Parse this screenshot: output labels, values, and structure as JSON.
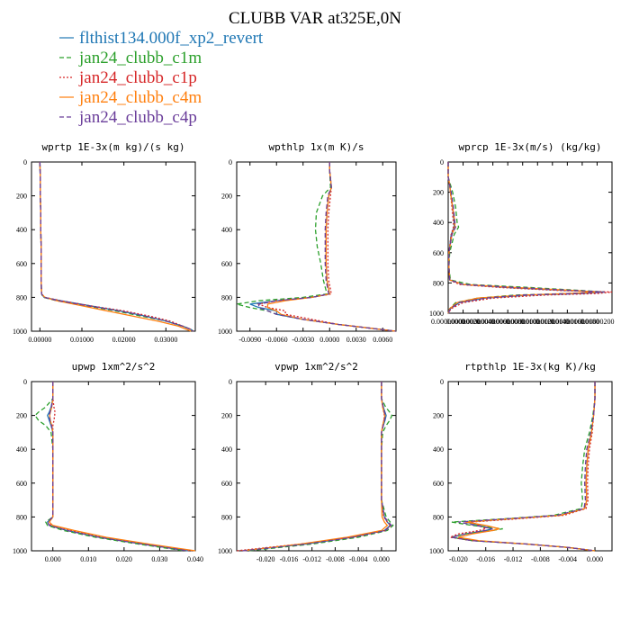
{
  "figure": {
    "title": "CLUBB VAR at325E,0N",
    "legend": [
      {
        "label": "flthist134.000f_xp2_revert",
        "color": "#1f77b4",
        "dash": "solid"
      },
      {
        "label": "jan24_clubb_c1m",
        "color": "#2ca02c",
        "dash": "dash"
      },
      {
        "label": "jan24_clubb_c1p",
        "color": "#d62728",
        "dash": "dot"
      },
      {
        "label": "jan24_clubb_c4m",
        "color": "#ff7f0e",
        "dash": "solid"
      },
      {
        "label": "jan24_clubb_c4p",
        "color": "#6a3d9a",
        "dash": "dash"
      }
    ]
  },
  "chart_data": [
    {
      "type": "line",
      "title": "wprtp  1E-3x(m kg)/(s kg)",
      "xlim": [
        -0.002,
        0.037
      ],
      "ylim": [
        0,
        1000
      ],
      "y_reversed": true,
      "xticks": [
        "0.00000",
        "0.01000",
        "0.02000",
        "0.03000"
      ],
      "yticks": [
        "0",
        "200",
        "400",
        "600",
        "800",
        "1000"
      ],
      "y": [
        0,
        100,
        200,
        300,
        400,
        500,
        600,
        700,
        780,
        800,
        820,
        850,
        880,
        910,
        940,
        970,
        990,
        1000
      ],
      "series": [
        {
          "values": [
            0,
            0.0001,
            0.0001,
            0.0002,
            0.0002,
            0.0003,
            0.0003,
            0.0003,
            0.0004,
            0.001,
            0.005,
            0.012,
            0.019,
            0.025,
            0.03,
            0.034,
            0.036,
            0.0365
          ]
        },
        {
          "values": [
            0,
            0.0001,
            0.0001,
            0.0002,
            0.0002,
            0.0003,
            0.0003,
            0.0003,
            0.0004,
            0.0008,
            0.004,
            0.011,
            0.018,
            0.024,
            0.03,
            0.034,
            0.036,
            0.0365
          ]
        },
        {
          "values": [
            0,
            0.0001,
            0.0001,
            0.0002,
            0.0002,
            0.0003,
            0.0003,
            0.0003,
            0.0004,
            0.0012,
            0.005,
            0.012,
            0.02,
            0.026,
            0.031,
            0.034,
            0.036,
            0.0365
          ]
        },
        {
          "values": [
            0,
            0.0001,
            0.0001,
            0.0002,
            0.0002,
            0.0003,
            0.0003,
            0.0003,
            0.0004,
            0.0012,
            0.004,
            0.01,
            0.016,
            0.022,
            0.028,
            0.033,
            0.035,
            0.036
          ]
        },
        {
          "values": [
            0,
            0.0001,
            0.0001,
            0.0002,
            0.0002,
            0.0003,
            0.0003,
            0.0003,
            0.0004,
            0.001,
            0.0045,
            0.0115,
            0.019,
            0.025,
            0.03,
            0.034,
            0.036,
            0.0365
          ]
        }
      ]
    },
    {
      "type": "line",
      "title": "wpthlp  1x(m K)/s",
      "xlim": [
        -0.0105,
        0.0075
      ],
      "ylim": [
        0,
        1000
      ],
      "y_reversed": true,
      "xticks": [
        "-0.0090",
        "-0.0060",
        "-0.0030",
        "0.0000",
        "0.0030",
        "0.0060"
      ],
      "yticks": [
        "0",
        "200",
        "400",
        "600",
        "800",
        "1000"
      ],
      "y": [
        0,
        50,
        150,
        200,
        300,
        400,
        500,
        600,
        700,
        780,
        800,
        820,
        840,
        860,
        880,
        900,
        930,
        960,
        1000
      ],
      "series": [
        {
          "values": [
            0,
            0,
            0.0002,
            -0.0001,
            -0.0003,
            -0.0004,
            -0.0004,
            -0.0004,
            -0.0003,
            0.0,
            -0.002,
            -0.006,
            -0.009,
            -0.008,
            -0.006,
            -0.006,
            -0.003,
            0.001,
            0.0075
          ]
        },
        {
          "values": [
            0,
            0,
            0.0001,
            -0.0008,
            -0.0015,
            -0.0016,
            -0.0014,
            -0.001,
            -0.0007,
            -0.0003,
            -0.003,
            -0.008,
            -0.0105,
            -0.009,
            -0.007,
            -0.006,
            -0.003,
            0.001,
            0.0075
          ]
        },
        {
          "values": [
            0,
            0,
            0.0002,
            0.0001,
            -0.0001,
            -0.0002,
            -0.0002,
            -0.0002,
            -0.0001,
            0.0002,
            -0.002,
            -0.006,
            -0.008,
            -0.007,
            -0.005,
            -0.005,
            -0.002,
            0.001,
            0.0075
          ]
        },
        {
          "values": [
            0,
            0,
            0.0002,
            -0.0001,
            -0.0003,
            -0.0004,
            -0.0004,
            -0.0004,
            -0.0003,
            0.0,
            -0.002,
            -0.005,
            -0.007,
            -0.007,
            -0.006,
            -0.0055,
            -0.003,
            0.001,
            0.0075
          ]
        },
        {
          "values": [
            0,
            0,
            0.0002,
            -0.0002,
            -0.0004,
            -0.0005,
            -0.0005,
            -0.0005,
            -0.0004,
            -0.0001,
            -0.002,
            -0.006,
            -0.008,
            -0.008,
            -0.007,
            -0.006,
            -0.003,
            0.001,
            0.0075
          ]
        }
      ]
    },
    {
      "type": "line",
      "title": "wprcp  1E-3x(m/s) (kg/kg)",
      "xlim": [
        0,
        2.2e-06
      ],
      "ylim": [
        0,
        1000
      ],
      "y_reversed": true,
      "xticks": [
        "0.00000000",
        "0.00000020",
        "0.00000040",
        "0.00000060",
        "0.00000080",
        "0.00000100",
        "0.00000120",
        "0.00000140",
        "0.00000160",
        "0.00000180",
        "0.00000200"
      ],
      "yticks": [
        "0",
        "200",
        "400",
        "600",
        "800",
        "1000"
      ],
      "y": [
        0,
        100,
        150,
        200,
        300,
        400,
        430,
        480,
        600,
        700,
        780,
        810,
        830,
        850,
        860,
        870,
        880,
        900,
        930,
        970,
        1000
      ],
      "series": [
        {
          "values": [
            0,
            0,
            2e-08,
            3e-08,
            6e-08,
            8e-08,
            8e-08,
            4e-08,
            1e-08,
            1e-08,
            2e-08,
            2e-07,
            8e-07,
            1.6e-06,
            2.1e-06,
            1.8e-06,
            1.1e-06,
            5e-07,
            1.5e-07,
            3e-08,
            0
          ]
        },
        {
          "values": [
            0,
            0,
            3e-08,
            6e-08,
            1e-07,
            1.2e-07,
            1.4e-07,
            8e-08,
            2e-08,
            1e-08,
            3e-08,
            3e-07,
            1.1e-06,
            1.8e-06,
            2.1e-06,
            1.6e-06,
            9e-07,
            4e-07,
            1e-07,
            2e-08,
            0
          ]
        },
        {
          "values": [
            0,
            0,
            2e-08,
            3e-08,
            5e-08,
            7e-08,
            7e-08,
            4e-08,
            1e-08,
            1e-08,
            2e-08,
            1.5e-07,
            7e-07,
            1.5e-06,
            2.2e-06,
            2e-06,
            1.3e-06,
            6e-07,
            2e-07,
            4e-08,
            0
          ]
        },
        {
          "values": [
            0,
            0,
            2e-08,
            3e-08,
            6e-08,
            9e-08,
            9e-08,
            5e-08,
            1e-08,
            1e-08,
            2e-08,
            2e-07,
            9e-07,
            1.7e-06,
            2e-06,
            1.6e-06,
            1e-06,
            4e-07,
            1.2e-07,
            2e-08,
            0
          ]
        },
        {
          "values": [
            0,
            0,
            2e-08,
            4e-08,
            7e-08,
            9e-08,
            1e-07,
            5e-08,
            1e-08,
            1e-08,
            2e-08,
            2e-07,
            9e-07,
            1.7e-06,
            2.1e-06,
            1.7e-06,
            1e-06,
            5e-07,
            1.4e-07,
            3e-08,
            0
          ]
        }
      ]
    },
    {
      "type": "line",
      "title": "upwp   1xm^2/s^2",
      "xlim": [
        -0.006,
        0.04
      ],
      "ylim": [
        0,
        1000
      ],
      "y_reversed": true,
      "xticks": [
        "0.000",
        "0.010",
        "0.020",
        "0.030",
        "0.040"
      ],
      "yticks": [
        "0",
        "200",
        "400",
        "600",
        "800",
        "1000"
      ],
      "y": [
        0,
        100,
        150,
        180,
        200,
        230,
        260,
        300,
        400,
        500,
        600,
        700,
        800,
        830,
        850,
        880,
        920,
        960,
        1000
      ],
      "series": [
        {
          "values": [
            0,
            0,
            -0.0005,
            -0.001,
            -0.0015,
            -0.001,
            -0.0005,
            0,
            0,
            0,
            0,
            0,
            0,
            -0.0015,
            -0.001,
            0.004,
            0.013,
            0.025,
            0.038
          ]
        },
        {
          "values": [
            0,
            0,
            -0.002,
            -0.004,
            -0.005,
            -0.004,
            -0.002,
            -0.0005,
            0,
            0,
            0,
            0,
            0,
            -0.002,
            -0.0015,
            0.003,
            0.012,
            0.024,
            0.037
          ]
        },
        {
          "values": [
            0,
            0,
            0.0003,
            0.0006,
            0.0005,
            0.0003,
            0,
            0,
            0,
            0,
            0,
            0,
            0,
            -0.001,
            -0.0005,
            0.005,
            0.014,
            0.026,
            0.039
          ]
        },
        {
          "values": [
            0,
            0,
            -0.0003,
            -0.0007,
            -0.0009,
            -0.0007,
            -0.0003,
            0,
            0,
            0,
            0,
            0,
            0,
            -0.001,
            0,
            0.006,
            0.015,
            0.027,
            0.04
          ]
        },
        {
          "values": [
            0,
            0,
            -0.0004,
            -0.0008,
            -0.001,
            -0.0008,
            -0.0004,
            0,
            0,
            0,
            0,
            0,
            0,
            -0.0015,
            -0.001,
            0.004,
            0.013,
            0.025,
            0.038
          ]
        }
      ]
    },
    {
      "type": "line",
      "title": "vpwp   1xm^2/s^2",
      "xlim": [
        -0.025,
        0.0025
      ],
      "ylim": [
        0,
        1000
      ],
      "y_reversed": true,
      "xticks": [
        "-0.020",
        "-0.016",
        "-0.012",
        "-0.008",
        "-0.004",
        "0.000"
      ],
      "yticks": [
        "0",
        "200",
        "400",
        "600",
        "800",
        "1000"
      ],
      "y": [
        0,
        100,
        150,
        180,
        200,
        230,
        260,
        300,
        400,
        500,
        600,
        700,
        800,
        830,
        850,
        880,
        920,
        960,
        1000
      ],
      "series": [
        {
          "values": [
            0,
            0,
            0.0003,
            0.0006,
            0.0008,
            0.0006,
            0.0003,
            0,
            0,
            0,
            0,
            0,
            0.0005,
            0.001,
            0.0015,
            0.0005,
            -0.005,
            -0.013,
            -0.024
          ]
        },
        {
          "values": [
            0,
            0,
            0.0007,
            0.0014,
            0.0018,
            0.0014,
            0.0008,
            0.0002,
            0,
            0,
            0,
            0,
            0.0008,
            0.0015,
            0.002,
            0.001,
            -0.004,
            -0.012,
            -0.023
          ]
        },
        {
          "values": [
            0,
            0,
            0.0002,
            0.0004,
            0.0005,
            0.0004,
            0.0002,
            0,
            0,
            0,
            0,
            0,
            0.0004,
            0.001,
            0.0016,
            0.0006,
            -0.005,
            -0.014,
            -0.025
          ]
        },
        {
          "values": [
            0,
            0,
            0.0002,
            0.0004,
            0.0006,
            0.0004,
            0.0002,
            0,
            0,
            0,
            0,
            0,
            0.0001,
            0.0005,
            0.001,
            0,
            -0.006,
            -0.014,
            -0.024
          ]
        },
        {
          "values": [
            0,
            0,
            0.0003,
            0.0005,
            0.0007,
            0.0005,
            0.0003,
            0,
            0,
            0,
            0,
            0,
            0.0005,
            0.0012,
            0.0017,
            0.0007,
            -0.005,
            -0.013,
            -0.024
          ]
        }
      ]
    },
    {
      "type": "line",
      "title": "rtpthlp  1E-3x(kg K)/kg",
      "xlim": [
        -0.0215,
        0.0025
      ],
      "ylim": [
        0,
        1000
      ],
      "y_reversed": true,
      "xticks": [
        "-0.020",
        "-0.016",
        "-0.012",
        "-0.008",
        "-0.004",
        "0.000"
      ],
      "yticks": [
        "0",
        "200",
        "400",
        "600",
        "800",
        "1000"
      ],
      "y": [
        0,
        100,
        200,
        300,
        400,
        500,
        600,
        700,
        750,
        790,
        810,
        830,
        850,
        870,
        880,
        900,
        920,
        940,
        960,
        980,
        1000
      ],
      "series": [
        {
          "values": [
            0,
            0,
            -0.0002,
            -0.0005,
            -0.001,
            -0.0012,
            -0.0013,
            -0.0012,
            -0.0015,
            -0.005,
            -0.012,
            -0.019,
            -0.017,
            -0.015,
            -0.016,
            -0.019,
            -0.021,
            -0.018,
            -0.01,
            -0.004,
            0
          ]
        },
        {
          "values": [
            0,
            0,
            -0.0003,
            -0.0008,
            -0.0015,
            -0.0018,
            -0.002,
            -0.0018,
            -0.002,
            -0.006,
            -0.013,
            -0.021,
            -0.018,
            -0.0135,
            -0.015,
            -0.019,
            -0.021,
            -0.018,
            -0.01,
            -0.004,
            0
          ]
        },
        {
          "values": [
            0,
            0,
            -0.0002,
            -0.0004,
            -0.0008,
            -0.001,
            -0.0011,
            -0.001,
            -0.0013,
            -0.0045,
            -0.011,
            -0.018,
            -0.017,
            -0.016,
            -0.017,
            -0.02,
            -0.0212,
            -0.018,
            -0.01,
            -0.004,
            0
          ]
        },
        {
          "values": [
            0,
            0,
            -0.0002,
            -0.0005,
            -0.001,
            -0.0012,
            -0.0013,
            -0.0012,
            -0.0015,
            -0.005,
            -0.012,
            -0.019,
            -0.016,
            -0.014,
            -0.015,
            -0.018,
            -0.02,
            -0.017,
            -0.01,
            -0.004,
            0
          ]
        },
        {
          "values": [
            0,
            0,
            -0.0002,
            -0.0006,
            -0.0012,
            -0.0014,
            -0.0015,
            -0.0014,
            -0.0016,
            -0.0055,
            -0.0125,
            -0.02,
            -0.0175,
            -0.015,
            -0.016,
            -0.019,
            -0.021,
            -0.018,
            -0.01,
            -0.004,
            0
          ]
        }
      ]
    }
  ]
}
